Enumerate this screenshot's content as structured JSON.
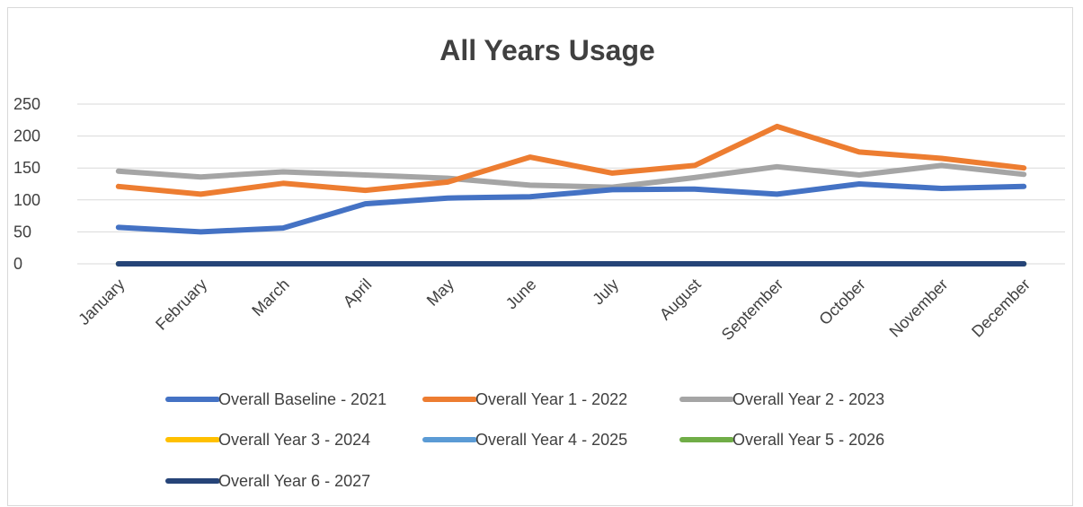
{
  "chart_data": {
    "type": "line",
    "title": "All Years Usage",
    "xlabel": "",
    "ylabel": "",
    "categories": [
      "January",
      "February",
      "March",
      "April",
      "May",
      "June",
      "July",
      "August",
      "September",
      "October",
      "November",
      "December"
    ],
    "ylim": [
      0,
      250
    ],
    "yticks": [
      "0",
      "50",
      "100",
      "150",
      "200",
      "250"
    ],
    "grid": true,
    "legend_position": "bottom",
    "series": [
      {
        "name": "Overall Baseline - 2021",
        "color": "#4472C4",
        "values": [
          57,
          50,
          56,
          94,
          103,
          105,
          116,
          117,
          109,
          125,
          118,
          121
        ]
      },
      {
        "name": "Overall Year 1 - 2022",
        "color": "#ED7D31",
        "values": [
          121,
          109,
          126,
          115,
          128,
          167,
          142,
          154,
          215,
          175,
          165,
          150
        ]
      },
      {
        "name": "Overall Year 2 - 2023",
        "color": "#A5A5A5",
        "values": [
          145,
          136,
          144,
          139,
          134,
          123,
          120,
          135,
          152,
          139,
          154,
          140
        ]
      },
      {
        "name": "Overall Year 3 - 2024",
        "color": "#FFC000",
        "values": [
          0,
          0,
          0,
          0,
          0,
          0,
          0,
          0,
          0,
          0,
          0,
          0
        ]
      },
      {
        "name": "Overall Year 4 - 2025",
        "color": "#5B9BD5",
        "values": [
          0,
          0,
          0,
          0,
          0,
          0,
          0,
          0,
          0,
          0,
          0,
          0
        ]
      },
      {
        "name": "Overall Year 5 - 2026",
        "color": "#70AD47",
        "values": [
          0,
          0,
          0,
          0,
          0,
          0,
          0,
          0,
          0,
          0,
          0,
          0
        ]
      },
      {
        "name": "Overall Year 6 - 2027",
        "color": "#264478",
        "values": [
          0,
          0,
          0,
          0,
          0,
          0,
          0,
          0,
          0,
          0,
          0,
          0
        ]
      }
    ]
  }
}
